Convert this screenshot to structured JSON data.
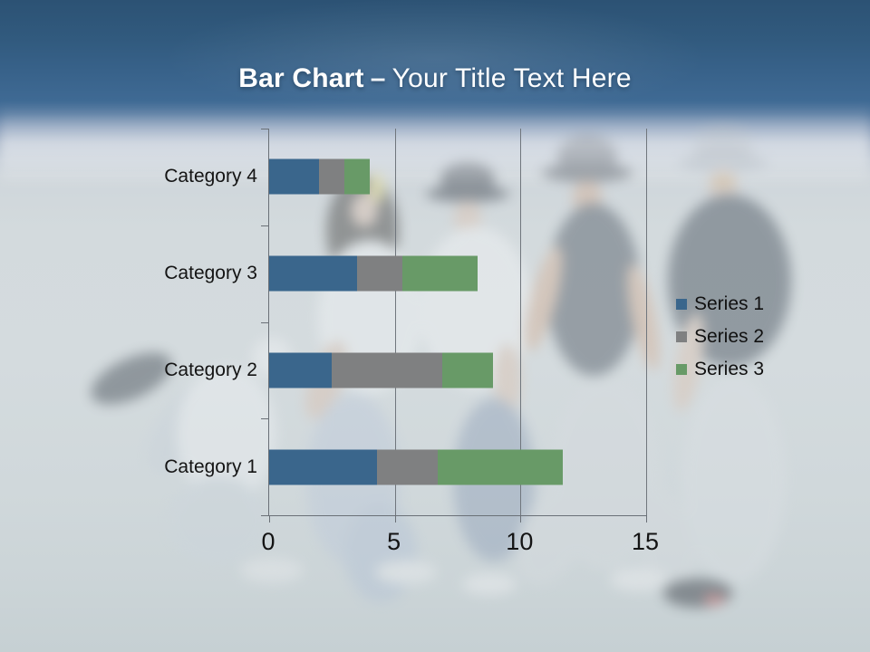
{
  "header": {
    "title_bold": "Bar Chart",
    "title_separator": "–",
    "title_regular": "Your Title Text Here"
  },
  "chart_data": {
    "type": "bar",
    "orientation": "horizontal",
    "stacked": true,
    "categories": [
      "Category 1",
      "Category 2",
      "Category 3",
      "Category 4"
    ],
    "category_order_top_to_bottom": [
      "Category 4",
      "Category 3",
      "Category 2",
      "Category 1"
    ],
    "series": [
      {
        "name": "Series 1",
        "color": "#3a668c",
        "values": [
          4.3,
          2.5,
          3.5,
          2
        ]
      },
      {
        "name": "Series 2",
        "color": "#7f8081",
        "values": [
          2.4,
          4.4,
          1.8,
          1
        ]
      },
      {
        "name": "Series 3",
        "color": "#689a67",
        "values": [
          5,
          2,
          3,
          1
        ]
      }
    ],
    "xlim": [
      0,
      15
    ],
    "x_ticks": [
      "0",
      "5",
      "10",
      "15"
    ],
    "grid": true,
    "legend_position": "middle-right"
  },
  "theme": {
    "header_blue_top": "#2d5475",
    "header_blue_bottom": "#41719e",
    "slide_background": "#d3dadd",
    "title_text_color": "#ffffff",
    "axis_text_color": "#141414",
    "grid_color": "#70767d"
  }
}
